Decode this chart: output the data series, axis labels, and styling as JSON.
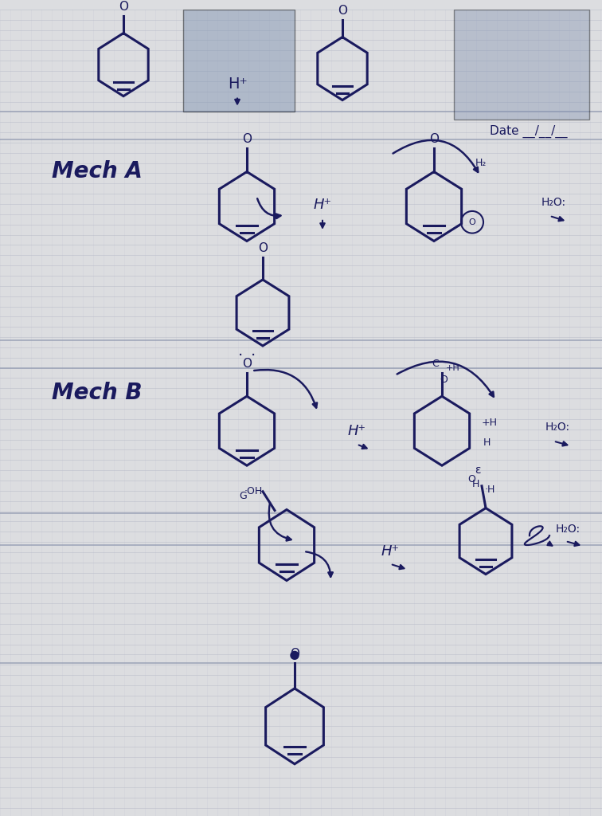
{
  "bg_color": "#dcdde0",
  "grid_h_color": "#b8bcc8",
  "grid_v_color": "#cacdd8",
  "ink": "#1a1a5e",
  "ink_light": "#2a2a7e",
  "figsize": [
    7.56,
    10.24
  ],
  "dpi": 100,
  "mech_a_label": "Mech A",
  "mech_b_label": "Mech B",
  "date_text": "Date __/__/__",
  "portrait1_color": "#8899bb",
  "portrait2_color": "#9aaccc",
  "page_bg": "#e8eaee"
}
